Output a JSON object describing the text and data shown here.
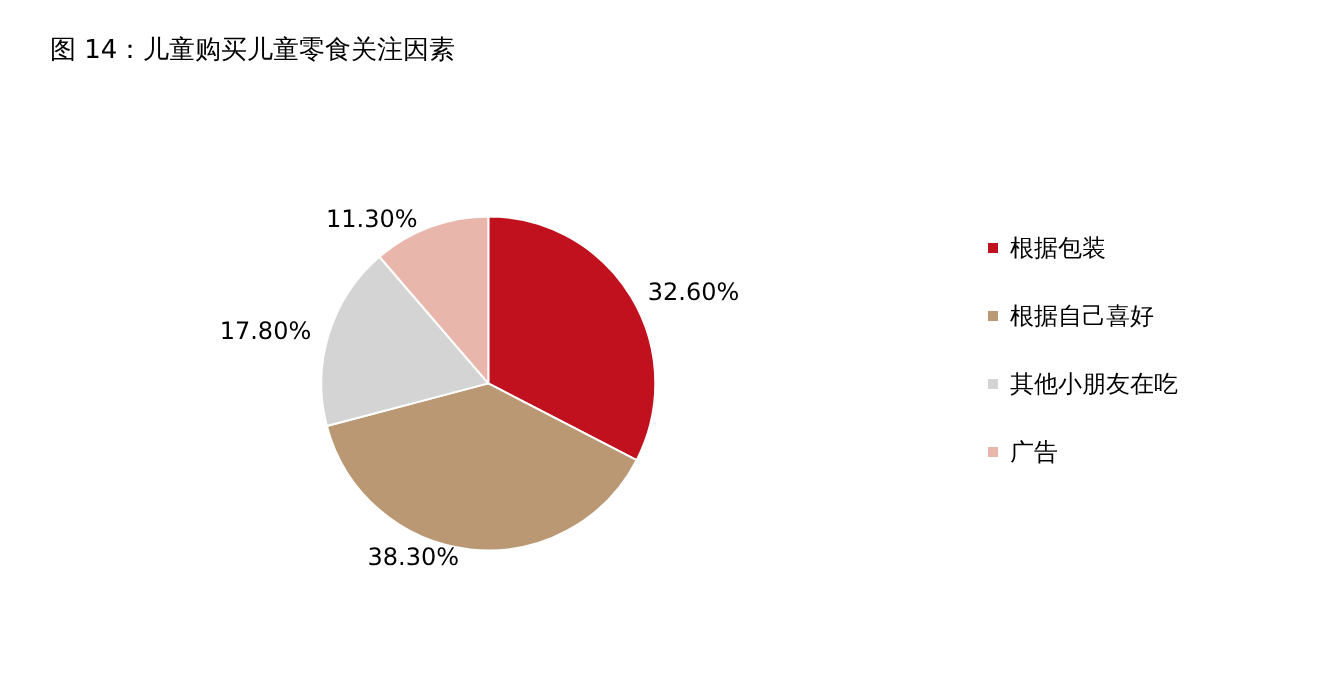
{
  "chart_data": {
    "type": "pie",
    "title": "图 14：儿童购买儿童零食关注因素",
    "categories": [
      "根据包装",
      "根据自己喜好",
      "其他小朋友在吃",
      "广告"
    ],
    "values": [
      32.6,
      38.3,
      17.8,
      11.3
    ],
    "value_labels": [
      "32.60%",
      "38.30%",
      "17.80%",
      "11.30%"
    ],
    "colors": [
      "#c2111e",
      "#b99873",
      "#d4d4d4",
      "#e9b6ac"
    ],
    "legend": "right"
  }
}
